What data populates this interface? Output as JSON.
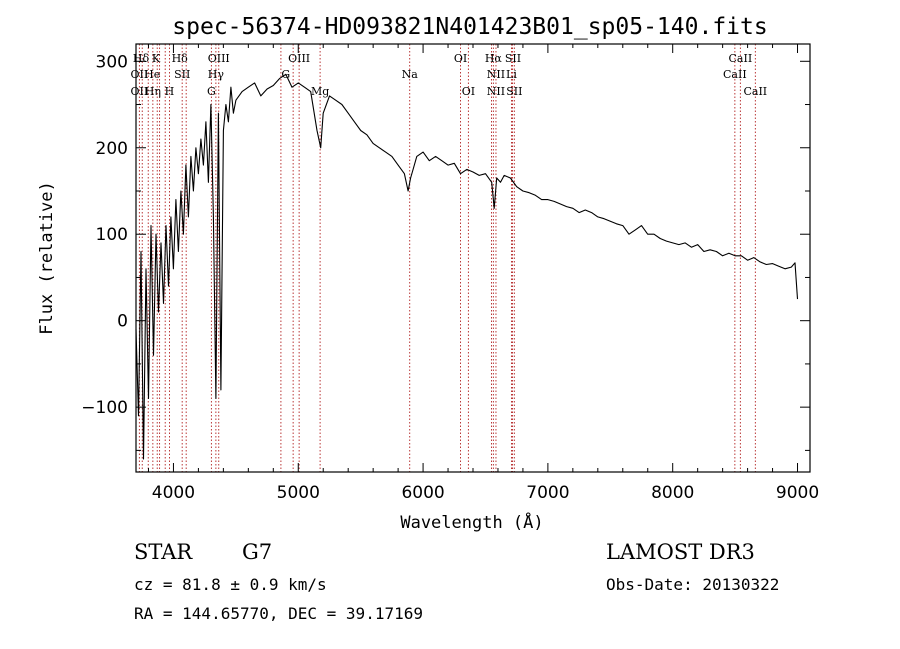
{
  "chart_data": {
    "type": "line",
    "title": "spec-56374-HD093821N401423B01_sp05-140.fits",
    "xlabel": "Wavelength (Å)",
    "ylabel": "Flux (relative)",
    "xlim": [
      3700,
      9100
    ],
    "ylim": [
      -175,
      320
    ],
    "x_ticks": [
      4000,
      5000,
      6000,
      7000,
      8000,
      9000
    ],
    "y_ticks": [
      -100,
      0,
      100,
      200,
      300
    ],
    "x_tick_labels": [
      "4000",
      "5000",
      "6000",
      "7000",
      "8000",
      "9000"
    ],
    "y_tick_labels": [
      "−100",
      "0",
      "100",
      "200",
      "300"
    ],
    "grid": false,
    "legend": "none",
    "series": [
      {
        "color": "#000000",
        "x": [
          3700,
          3720,
          3740,
          3760,
          3780,
          3800,
          3820,
          3840,
          3860,
          3880,
          3900,
          3920,
          3940,
          3960,
          3980,
          4000,
          4020,
          4040,
          4060,
          4080,
          4100,
          4120,
          4140,
          4160,
          4180,
          4200,
          4220,
          4240,
          4260,
          4280,
          4300,
          4320,
          4340,
          4360,
          4380,
          4400,
          4420,
          4440,
          4460,
          4480,
          4500,
          4550,
          4600,
          4650,
          4700,
          4750,
          4800,
          4850,
          4900,
          4950,
          5000,
          5050,
          5100,
          5150,
          5180,
          5200,
          5250,
          5300,
          5350,
          5400,
          5450,
          5500,
          5550,
          5600,
          5650,
          5700,
          5750,
          5800,
          5850,
          5880,
          5900,
          5920,
          5950,
          6000,
          6050,
          6100,
          6150,
          6200,
          6250,
          6300,
          6350,
          6400,
          6450,
          6500,
          6550,
          6570,
          6590,
          6620,
          6650,
          6700,
          6750,
          6800,
          6850,
          6900,
          6950,
          7000,
          7050,
          7100,
          7150,
          7200,
          7250,
          7300,
          7350,
          7400,
          7450,
          7500,
          7550,
          7600,
          7650,
          7700,
          7750,
          7800,
          7850,
          7900,
          7950,
          8000,
          8050,
          8100,
          8150,
          8200,
          8250,
          8300,
          8350,
          8400,
          8450,
          8500,
          8550,
          8600,
          8650,
          8700,
          8750,
          8800,
          8850,
          8900,
          8950,
          8980,
          9000
        ],
        "y": [
          -10,
          -110,
          80,
          -160,
          60,
          -90,
          110,
          -40,
          100,
          10,
          90,
          20,
          110,
          40,
          120,
          60,
          140,
          80,
          150,
          100,
          180,
          120,
          190,
          150,
          200,
          170,
          210,
          180,
          230,
          160,
          250,
          120,
          -90,
          240,
          -80,
          220,
          250,
          230,
          270,
          240,
          255,
          265,
          270,
          275,
          260,
          268,
          272,
          280,
          285,
          270,
          275,
          270,
          265,
          220,
          200,
          240,
          260,
          255,
          250,
          240,
          230,
          220,
          215,
          205,
          200,
          195,
          190,
          180,
          170,
          150,
          165,
          175,
          190,
          195,
          185,
          190,
          185,
          180,
          182,
          170,
          175,
          172,
          168,
          170,
          160,
          130,
          165,
          160,
          168,
          165,
          155,
          150,
          148,
          145,
          140,
          140,
          138,
          135,
          132,
          130,
          125,
          128,
          125,
          120,
          118,
          115,
          112,
          110,
          100,
          105,
          110,
          100,
          100,
          95,
          92,
          90,
          88,
          90,
          85,
          88,
          80,
          82,
          80,
          75,
          78,
          75,
          75,
          70,
          73,
          68,
          65,
          66,
          63,
          60,
          62,
          67,
          25
        ]
      }
    ],
    "spectral_lines": [
      {
        "label": "Hδ",
        "x": 3740,
        "row": 0
      },
      {
        "label": "K",
        "x": 3860,
        "row": 0
      },
      {
        "label": "Hδ",
        "x": 4050,
        "row": 0
      },
      {
        "label": "OIII",
        "x": 4363,
        "row": 0
      },
      {
        "label": "OIII",
        "x": 5007,
        "row": 0
      },
      {
        "label": "OI",
        "x": 6300,
        "row": 0
      },
      {
        "label": "Hα",
        "x": 6563,
        "row": 0
      },
      {
        "label": "SII",
        "x": 6720,
        "row": 0
      },
      {
        "label": "CaII",
        "x": 8542,
        "row": 0
      },
      {
        "label": "OII",
        "x": 3727,
        "row": 1
      },
      {
        "label": "He",
        "x": 3830,
        "row": 1
      },
      {
        "label": "SII",
        "x": 4070,
        "row": 1
      },
      {
        "label": "Hγ",
        "x": 4340,
        "row": 1
      },
      {
        "label": "G",
        "x": 4900,
        "row": 1
      },
      {
        "label": "Na",
        "x": 5893,
        "row": 1
      },
      {
        "label": "NII",
        "x": 6584,
        "row": 1
      },
      {
        "label": "Li",
        "x": 6708,
        "row": 1
      },
      {
        "label": "CaII",
        "x": 8498,
        "row": 1
      },
      {
        "label": "OII",
        "x": 3727,
        "row": 2
      },
      {
        "label": "Hη",
        "x": 3835,
        "row": 2
      },
      {
        "label": "H",
        "x": 3968,
        "row": 2
      },
      {
        "label": "G",
        "x": 4304,
        "row": 2
      },
      {
        "label": "Mg",
        "x": 5175,
        "row": 2
      },
      {
        "label": "OI",
        "x": 6363,
        "row": 2
      },
      {
        "label": "NII",
        "x": 6584,
        "row": 2
      },
      {
        "label": "SII",
        "x": 6731,
        "row": 2
      },
      {
        "label": "CaII",
        "x": 8662,
        "row": 2
      }
    ],
    "marker_lines": [
      3727,
      3750,
      3798,
      3835,
      3870,
      3889,
      3934,
      3968,
      4070,
      4102,
      4304,
      4340,
      4363,
      4861,
      4959,
      5007,
      5175,
      5893,
      6300,
      6363,
      6548,
      6563,
      6584,
      6708,
      6717,
      6731,
      8498,
      8542,
      8662
    ]
  },
  "info": {
    "object_class": "STAR",
    "subclass": "G7",
    "redshift_line": "cz = 81.8 ± 0.9 km/s",
    "coords_line": "RA = 144.65770, DEC =  39.17169",
    "survey": "LAMOST DR3",
    "obs_date": "Obs-Date: 20130322"
  }
}
